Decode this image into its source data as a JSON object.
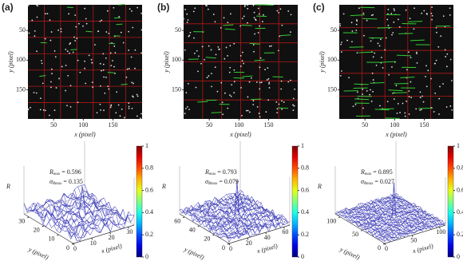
{
  "panels": [
    {
      "label": "(a)",
      "image": {
        "xticks": [
          50,
          100,
          150
        ],
        "yticks": [
          50,
          100,
          150
        ],
        "xlabel": "x (pixel)",
        "ylabel": "y (pixel)"
      },
      "surface": {
        "zlabel": "R",
        "rmax": {
          "symbol": "R",
          "sub": "max",
          "text": "= 0.596"
        },
        "sigma": {
          "symbol": "σ",
          "sub": "Rmax",
          "text": "= 0.135"
        },
        "xticks": [
          0,
          10,
          20,
          30
        ],
        "yticks": [
          0,
          10,
          20,
          30
        ],
        "xlabel": "x (pixel)",
        "ylabel": "y (pixel)",
        "cticks": [
          0,
          0.2,
          0.4,
          0.6,
          0.8,
          1
        ]
      }
    },
    {
      "label": "(b)",
      "image": {
        "xticks": [
          50,
          100,
          150
        ],
        "yticks": [
          50,
          100,
          150
        ],
        "xlabel": "x (pixel)",
        "ylabel": "y (pixel)"
      },
      "surface": {
        "zlabel": "R",
        "rmax": {
          "symbol": "R",
          "sub": "max",
          "text": "= 0.793"
        },
        "sigma": {
          "symbol": "σ",
          "sub": "Rmax",
          "text": "= 0.079"
        },
        "xticks": [
          0,
          20,
          40,
          60
        ],
        "yticks": [
          0,
          20,
          40,
          60
        ],
        "xlabel": "x (pixel)",
        "ylabel": "y (pixel)",
        "cticks": [
          0,
          0.2,
          0.4,
          0.6,
          0.8,
          1
        ]
      }
    },
    {
      "label": "(c)",
      "image": {
        "xticks": [
          50,
          100,
          150
        ],
        "yticks": [
          50,
          100,
          150
        ],
        "xlabel": "x (pixel)",
        "ylabel": "y (pixel)"
      },
      "surface": {
        "zlabel": "R",
        "rmax": {
          "symbol": "R",
          "sub": "max",
          "text": "= 0.895"
        },
        "sigma": {
          "symbol": "σ",
          "sub": "Rmax",
          "text": "= 0.027"
        },
        "xticks": [
          0,
          50,
          100
        ],
        "yticks": [
          0,
          50,
          100
        ],
        "xlabel": "x (pixel)",
        "ylabel": "y (pixel)",
        "cticks": [
          0,
          0.2,
          0.4,
          0.6,
          0.8,
          1
        ]
      }
    }
  ]
}
